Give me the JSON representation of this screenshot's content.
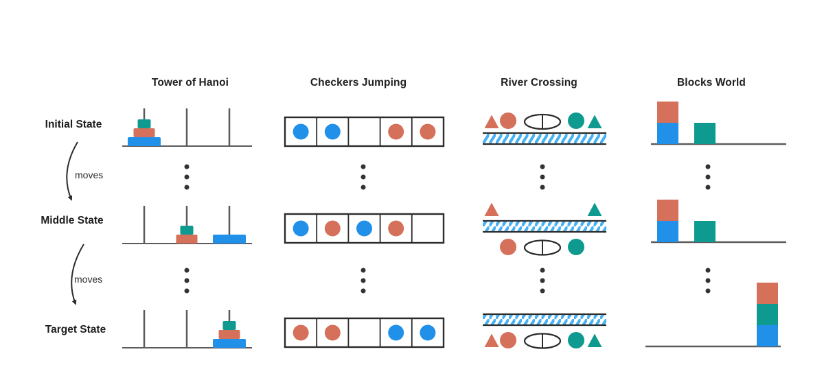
{
  "columns": [
    {
      "id": "hanoi",
      "title": "Tower of Hanoi"
    },
    {
      "id": "checkers",
      "title": "Checkers Jumping"
    },
    {
      "id": "river",
      "title": "River Crossing"
    },
    {
      "id": "blocks",
      "title": "Blocks World"
    }
  ],
  "rows": [
    {
      "id": "initial",
      "label": "Initial State"
    },
    {
      "id": "middle",
      "label": "Middle State"
    },
    {
      "id": "target",
      "label": "Target State"
    }
  ],
  "transitions": [
    {
      "label": "moves"
    },
    {
      "label": "moves"
    }
  ],
  "colors": {
    "blue": "#2190E9",
    "orange": "#D5705A",
    "teal": "#0E9A8E",
    "line": "#5b5b5b",
    "dark": "#2b2b2b",
    "dot": "#333333",
    "hatch_blue": "#47B1F3",
    "text": "#1e1e1e",
    "background": "#ffffff"
  },
  "puzzles": {
    "hanoi": {
      "states": {
        "initial": [
          [
            "blue",
            "orange",
            "teal"
          ],
          [],
          []
        ],
        "middle": [
          [],
          [
            "orange",
            "teal"
          ],
          [
            "blue"
          ]
        ],
        "target": [
          [],
          [],
          [
            "blue",
            "orange",
            "teal"
          ]
        ]
      }
    },
    "checkers": {
      "states": {
        "initial": [
          "blue",
          "blue",
          "empty",
          "orange",
          "orange"
        ],
        "middle": [
          "blue",
          "orange",
          "blue",
          "orange",
          "empty"
        ],
        "target": [
          "orange",
          "orange",
          "empty",
          "blue",
          "blue"
        ]
      }
    },
    "river": {
      "entities": [
        "triangle-orange",
        "circle-orange",
        "boat",
        "circle-teal",
        "triangle-teal"
      ],
      "states": {
        "initial": [
          "top",
          "top",
          "top",
          "top",
          "top"
        ],
        "middle": [
          "top",
          "bottom",
          "bottom",
          "bottom",
          "top"
        ],
        "target": [
          "bottom",
          "bottom",
          "bottom",
          "bottom",
          "bottom"
        ]
      }
    },
    "blocks": {
      "states": {
        "initial": [
          [
            "blue",
            "orange"
          ],
          [
            "teal"
          ],
          []
        ],
        "middle": [
          [
            "blue",
            "orange"
          ],
          [
            "teal"
          ],
          []
        ],
        "target": [
          [],
          [],
          [
            "blue",
            "teal",
            "orange"
          ]
        ]
      }
    }
  }
}
